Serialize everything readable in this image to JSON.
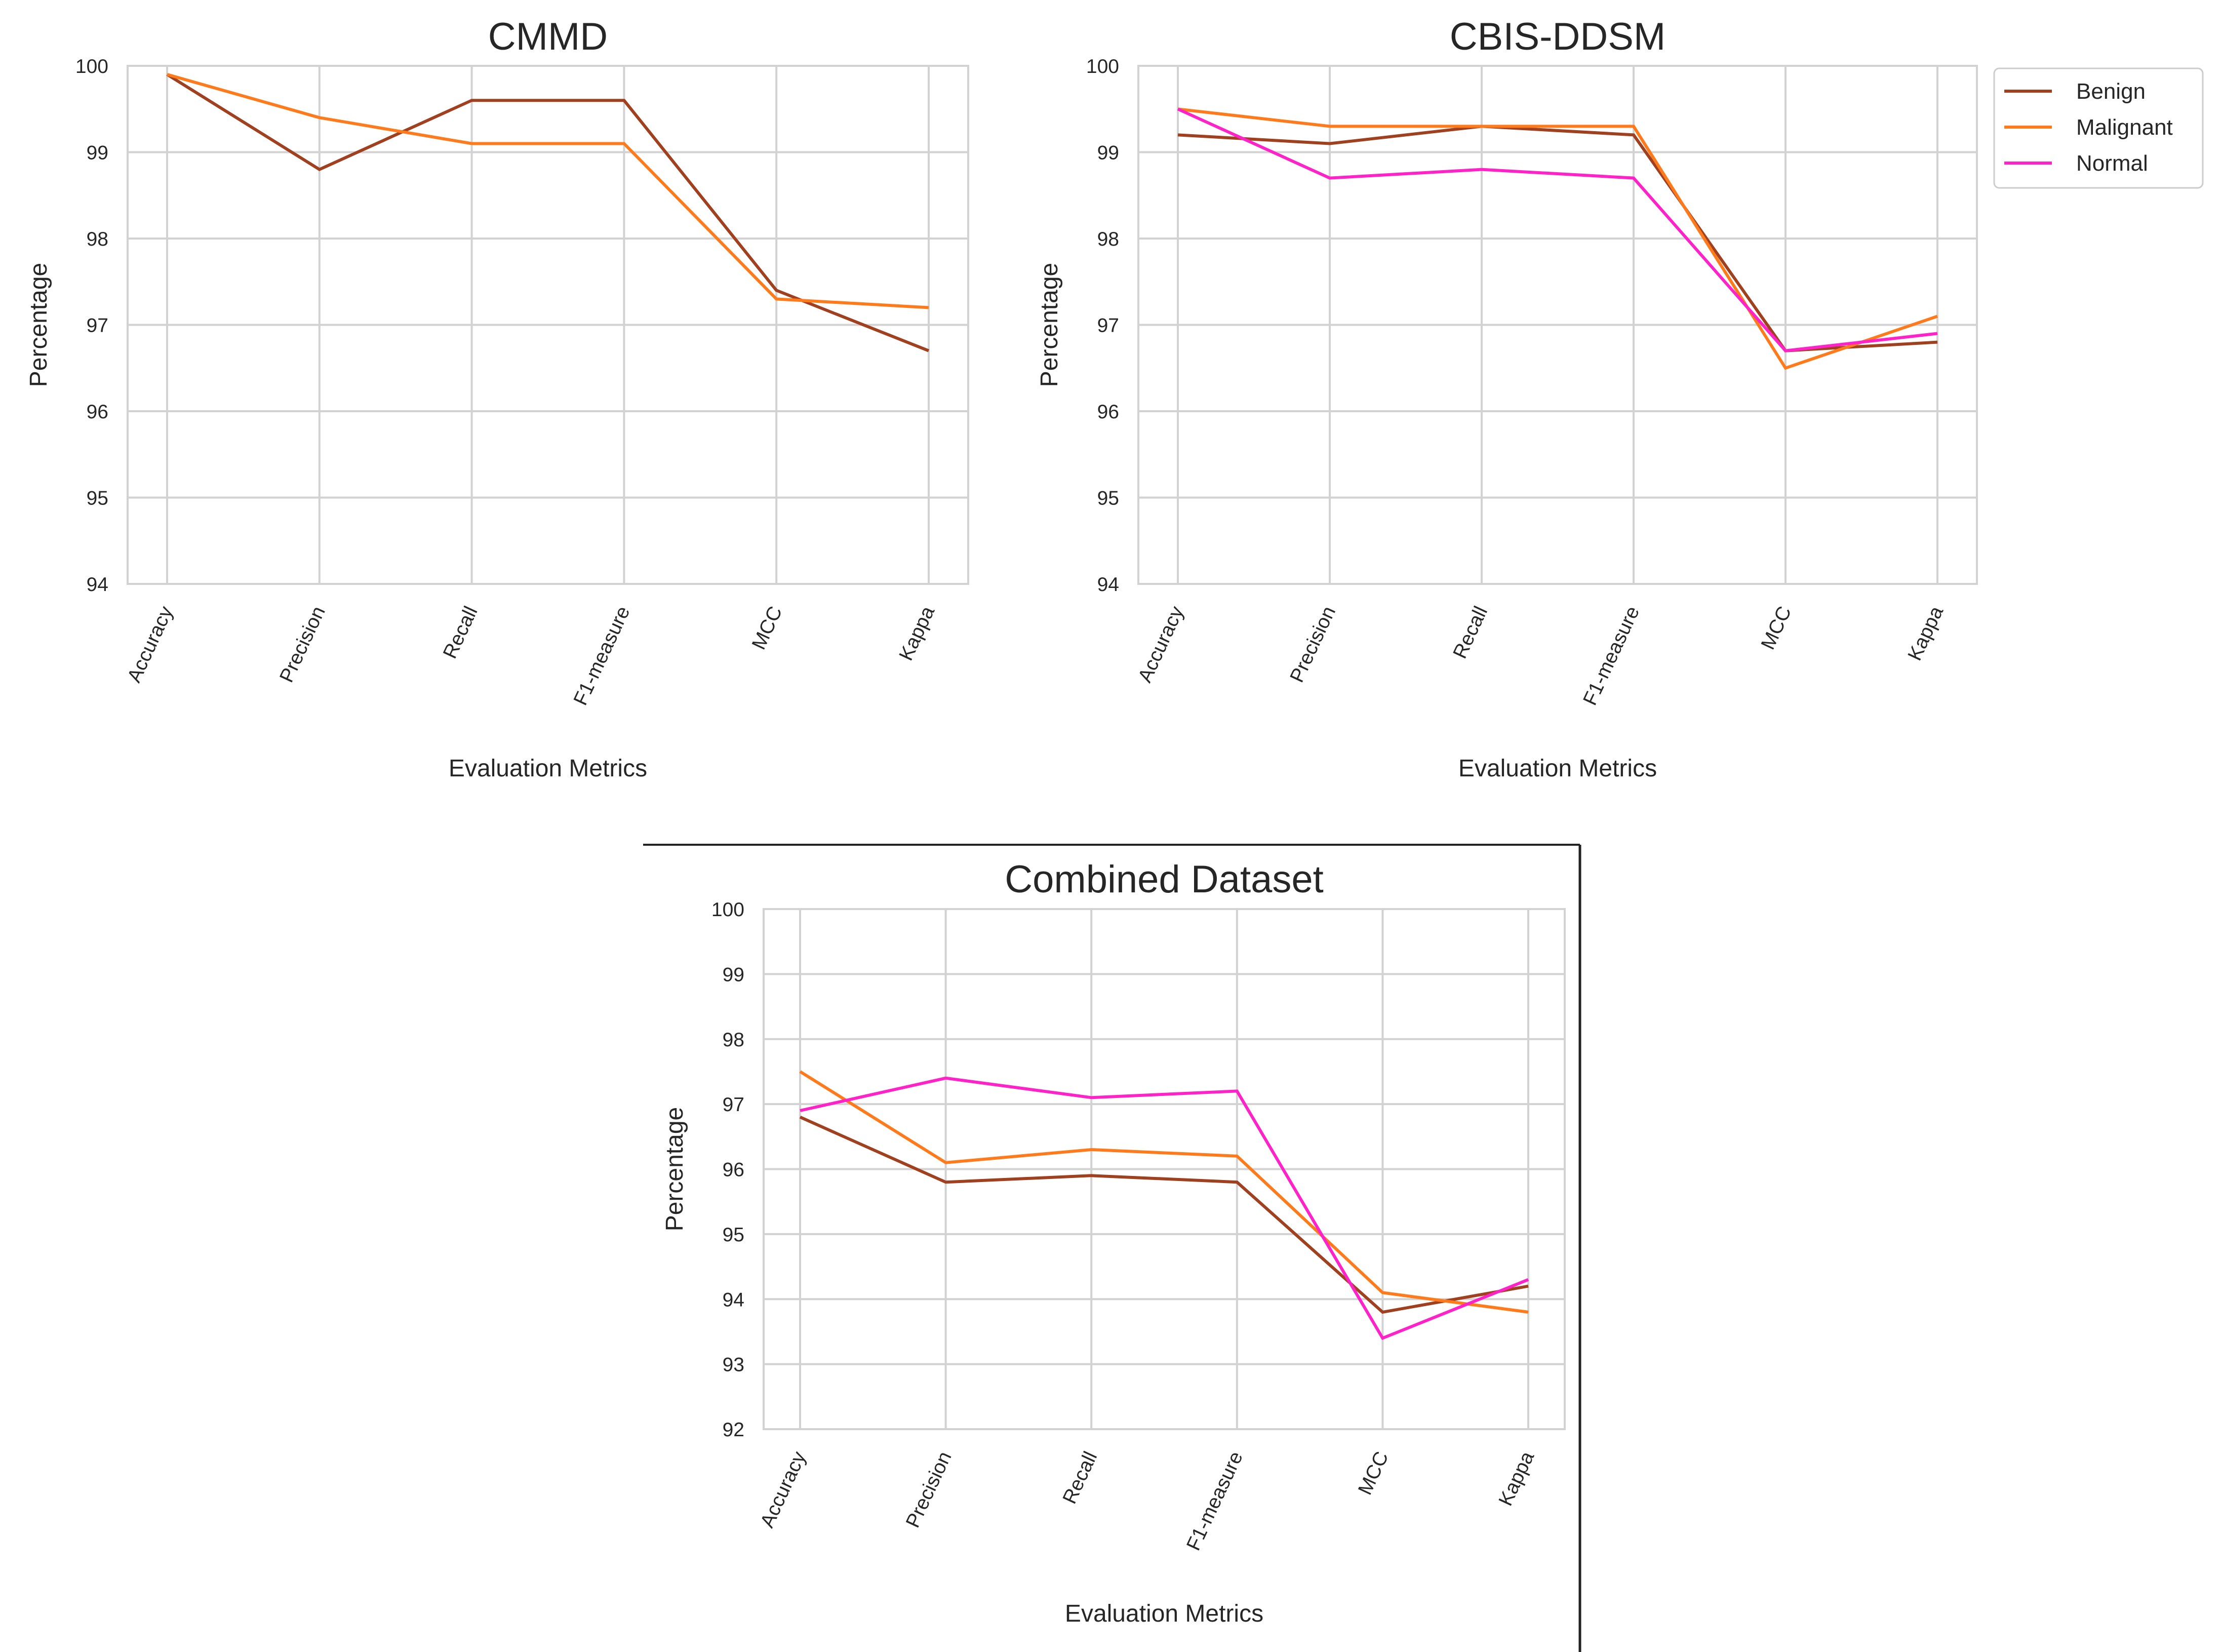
{
  "colors": {
    "Benign": "#a0401f",
    "Malignant": "#ff7a1a",
    "Normal": "#ff22c8",
    "grid": "#d2d2d2",
    "axes": "#d2d2d2"
  },
  "legend": [
    "Benign",
    "Malignant",
    "Normal"
  ],
  "chart_data": [
    {
      "type": "line",
      "title": "CMMD",
      "xlabel": "Evaluation Metrics",
      "ylabel": "Percentage",
      "categories": [
        "Accuracy",
        "Precision",
        "Recall",
        "F1-measure",
        "MCC",
        "Kappa"
      ],
      "ylim": [
        94,
        100
      ],
      "yticks": [
        94,
        95,
        96,
        97,
        98,
        99,
        100
      ],
      "grid": true,
      "series": [
        {
          "name": "Benign",
          "values": [
            99.9,
            98.8,
            99.6,
            99.6,
            97.4,
            96.7
          ]
        },
        {
          "name": "Malignant",
          "values": [
            99.9,
            99.4,
            99.1,
            99.1,
            97.3,
            97.2
          ]
        }
      ]
    },
    {
      "type": "line",
      "title": "CBIS-DDSM",
      "xlabel": "Evaluation Metrics",
      "ylabel": "Percentage",
      "categories": [
        "Accuracy",
        "Precision",
        "Recall",
        "F1-measure",
        "MCC",
        "Kappa"
      ],
      "ylim": [
        94,
        100
      ],
      "yticks": [
        94,
        95,
        96,
        97,
        98,
        99,
        100
      ],
      "grid": true,
      "legend_position": "outside-top-right",
      "series": [
        {
          "name": "Benign",
          "values": [
            99.2,
            99.1,
            99.3,
            99.2,
            96.7,
            96.8
          ]
        },
        {
          "name": "Malignant",
          "values": [
            99.5,
            99.3,
            99.3,
            99.3,
            96.5,
            97.1
          ]
        },
        {
          "name": "Normal",
          "values": [
            99.5,
            98.7,
            98.8,
            98.7,
            96.7,
            96.9
          ]
        }
      ]
    },
    {
      "type": "line",
      "title": "Combined Dataset",
      "xlabel": "Evaluation Metrics",
      "ylabel": "Percentage",
      "categories": [
        "Accuracy",
        "Precision",
        "Recall",
        "F1-measure",
        "MCC",
        "Kappa"
      ],
      "ylim": [
        92,
        100
      ],
      "yticks": [
        92,
        93,
        94,
        95,
        96,
        97,
        98,
        99,
        100
      ],
      "grid": true,
      "series": [
        {
          "name": "Benign",
          "values": [
            96.8,
            95.8,
            95.9,
            95.8,
            93.8,
            94.2
          ]
        },
        {
          "name": "Malignant",
          "values": [
            97.5,
            96.1,
            96.3,
            96.2,
            94.1,
            93.8
          ]
        },
        {
          "name": "Normal",
          "values": [
            96.9,
            97.4,
            97.1,
            97.2,
            93.4,
            94.3
          ]
        }
      ]
    }
  ]
}
